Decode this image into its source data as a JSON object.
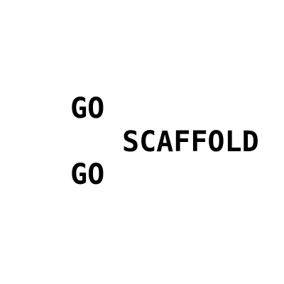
{
  "words": {
    "first": "GO",
    "middle": "SCAFFOLD",
    "last": "GO"
  },
  "colors": {
    "background": "#ffffff",
    "text": "#000000"
  }
}
